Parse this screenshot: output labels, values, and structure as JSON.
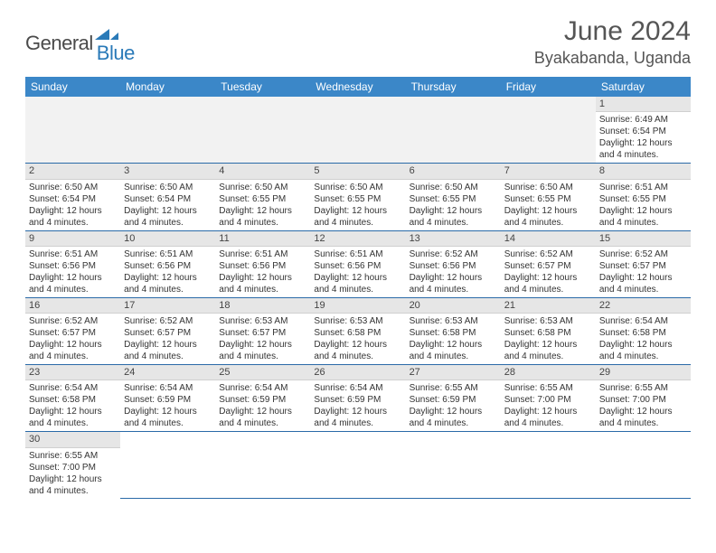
{
  "brand": {
    "part1": "General",
    "part2": "Blue"
  },
  "title": "June 2024",
  "location": "Byakabanda, Uganda",
  "colors": {
    "header_bg": "#3b87c8",
    "row_divider": "#2a6aa8",
    "daynum_bg": "#e6e6e6",
    "brand_blue": "#2a7ab8",
    "text": "#333333"
  },
  "weekdays": [
    "Sunday",
    "Monday",
    "Tuesday",
    "Wednesday",
    "Thursday",
    "Friday",
    "Saturday"
  ],
  "weeks": [
    [
      null,
      null,
      null,
      null,
      null,
      null,
      {
        "n": "1",
        "sr": "Sunrise: 6:49 AM",
        "ss": "Sunset: 6:54 PM",
        "d1": "Daylight: 12 hours",
        "d2": "and 4 minutes."
      }
    ],
    [
      {
        "n": "2",
        "sr": "Sunrise: 6:50 AM",
        "ss": "Sunset: 6:54 PM",
        "d1": "Daylight: 12 hours",
        "d2": "and 4 minutes."
      },
      {
        "n": "3",
        "sr": "Sunrise: 6:50 AM",
        "ss": "Sunset: 6:54 PM",
        "d1": "Daylight: 12 hours",
        "d2": "and 4 minutes."
      },
      {
        "n": "4",
        "sr": "Sunrise: 6:50 AM",
        "ss": "Sunset: 6:55 PM",
        "d1": "Daylight: 12 hours",
        "d2": "and 4 minutes."
      },
      {
        "n": "5",
        "sr": "Sunrise: 6:50 AM",
        "ss": "Sunset: 6:55 PM",
        "d1": "Daylight: 12 hours",
        "d2": "and 4 minutes."
      },
      {
        "n": "6",
        "sr": "Sunrise: 6:50 AM",
        "ss": "Sunset: 6:55 PM",
        "d1": "Daylight: 12 hours",
        "d2": "and 4 minutes."
      },
      {
        "n": "7",
        "sr": "Sunrise: 6:50 AM",
        "ss": "Sunset: 6:55 PM",
        "d1": "Daylight: 12 hours",
        "d2": "and 4 minutes."
      },
      {
        "n": "8",
        "sr": "Sunrise: 6:51 AM",
        "ss": "Sunset: 6:55 PM",
        "d1": "Daylight: 12 hours",
        "d2": "and 4 minutes."
      }
    ],
    [
      {
        "n": "9",
        "sr": "Sunrise: 6:51 AM",
        "ss": "Sunset: 6:56 PM",
        "d1": "Daylight: 12 hours",
        "d2": "and 4 minutes."
      },
      {
        "n": "10",
        "sr": "Sunrise: 6:51 AM",
        "ss": "Sunset: 6:56 PM",
        "d1": "Daylight: 12 hours",
        "d2": "and 4 minutes."
      },
      {
        "n": "11",
        "sr": "Sunrise: 6:51 AM",
        "ss": "Sunset: 6:56 PM",
        "d1": "Daylight: 12 hours",
        "d2": "and 4 minutes."
      },
      {
        "n": "12",
        "sr": "Sunrise: 6:51 AM",
        "ss": "Sunset: 6:56 PM",
        "d1": "Daylight: 12 hours",
        "d2": "and 4 minutes."
      },
      {
        "n": "13",
        "sr": "Sunrise: 6:52 AM",
        "ss": "Sunset: 6:56 PM",
        "d1": "Daylight: 12 hours",
        "d2": "and 4 minutes."
      },
      {
        "n": "14",
        "sr": "Sunrise: 6:52 AM",
        "ss": "Sunset: 6:57 PM",
        "d1": "Daylight: 12 hours",
        "d2": "and 4 minutes."
      },
      {
        "n": "15",
        "sr": "Sunrise: 6:52 AM",
        "ss": "Sunset: 6:57 PM",
        "d1": "Daylight: 12 hours",
        "d2": "and 4 minutes."
      }
    ],
    [
      {
        "n": "16",
        "sr": "Sunrise: 6:52 AM",
        "ss": "Sunset: 6:57 PM",
        "d1": "Daylight: 12 hours",
        "d2": "and 4 minutes."
      },
      {
        "n": "17",
        "sr": "Sunrise: 6:52 AM",
        "ss": "Sunset: 6:57 PM",
        "d1": "Daylight: 12 hours",
        "d2": "and 4 minutes."
      },
      {
        "n": "18",
        "sr": "Sunrise: 6:53 AM",
        "ss": "Sunset: 6:57 PM",
        "d1": "Daylight: 12 hours",
        "d2": "and 4 minutes."
      },
      {
        "n": "19",
        "sr": "Sunrise: 6:53 AM",
        "ss": "Sunset: 6:58 PM",
        "d1": "Daylight: 12 hours",
        "d2": "and 4 minutes."
      },
      {
        "n": "20",
        "sr": "Sunrise: 6:53 AM",
        "ss": "Sunset: 6:58 PM",
        "d1": "Daylight: 12 hours",
        "d2": "and 4 minutes."
      },
      {
        "n": "21",
        "sr": "Sunrise: 6:53 AM",
        "ss": "Sunset: 6:58 PM",
        "d1": "Daylight: 12 hours",
        "d2": "and 4 minutes."
      },
      {
        "n": "22",
        "sr": "Sunrise: 6:54 AM",
        "ss": "Sunset: 6:58 PM",
        "d1": "Daylight: 12 hours",
        "d2": "and 4 minutes."
      }
    ],
    [
      {
        "n": "23",
        "sr": "Sunrise: 6:54 AM",
        "ss": "Sunset: 6:58 PM",
        "d1": "Daylight: 12 hours",
        "d2": "and 4 minutes."
      },
      {
        "n": "24",
        "sr": "Sunrise: 6:54 AM",
        "ss": "Sunset: 6:59 PM",
        "d1": "Daylight: 12 hours",
        "d2": "and 4 minutes."
      },
      {
        "n": "25",
        "sr": "Sunrise: 6:54 AM",
        "ss": "Sunset: 6:59 PM",
        "d1": "Daylight: 12 hours",
        "d2": "and 4 minutes."
      },
      {
        "n": "26",
        "sr": "Sunrise: 6:54 AM",
        "ss": "Sunset: 6:59 PM",
        "d1": "Daylight: 12 hours",
        "d2": "and 4 minutes."
      },
      {
        "n": "27",
        "sr": "Sunrise: 6:55 AM",
        "ss": "Sunset: 6:59 PM",
        "d1": "Daylight: 12 hours",
        "d2": "and 4 minutes."
      },
      {
        "n": "28",
        "sr": "Sunrise: 6:55 AM",
        "ss": "Sunset: 7:00 PM",
        "d1": "Daylight: 12 hours",
        "d2": "and 4 minutes."
      },
      {
        "n": "29",
        "sr": "Sunrise: 6:55 AM",
        "ss": "Sunset: 7:00 PM",
        "d1": "Daylight: 12 hours",
        "d2": "and 4 minutes."
      }
    ],
    [
      {
        "n": "30",
        "sr": "Sunrise: 6:55 AM",
        "ss": "Sunset: 7:00 PM",
        "d1": "Daylight: 12 hours",
        "d2": "and 4 minutes."
      },
      null,
      null,
      null,
      null,
      null,
      null
    ]
  ]
}
